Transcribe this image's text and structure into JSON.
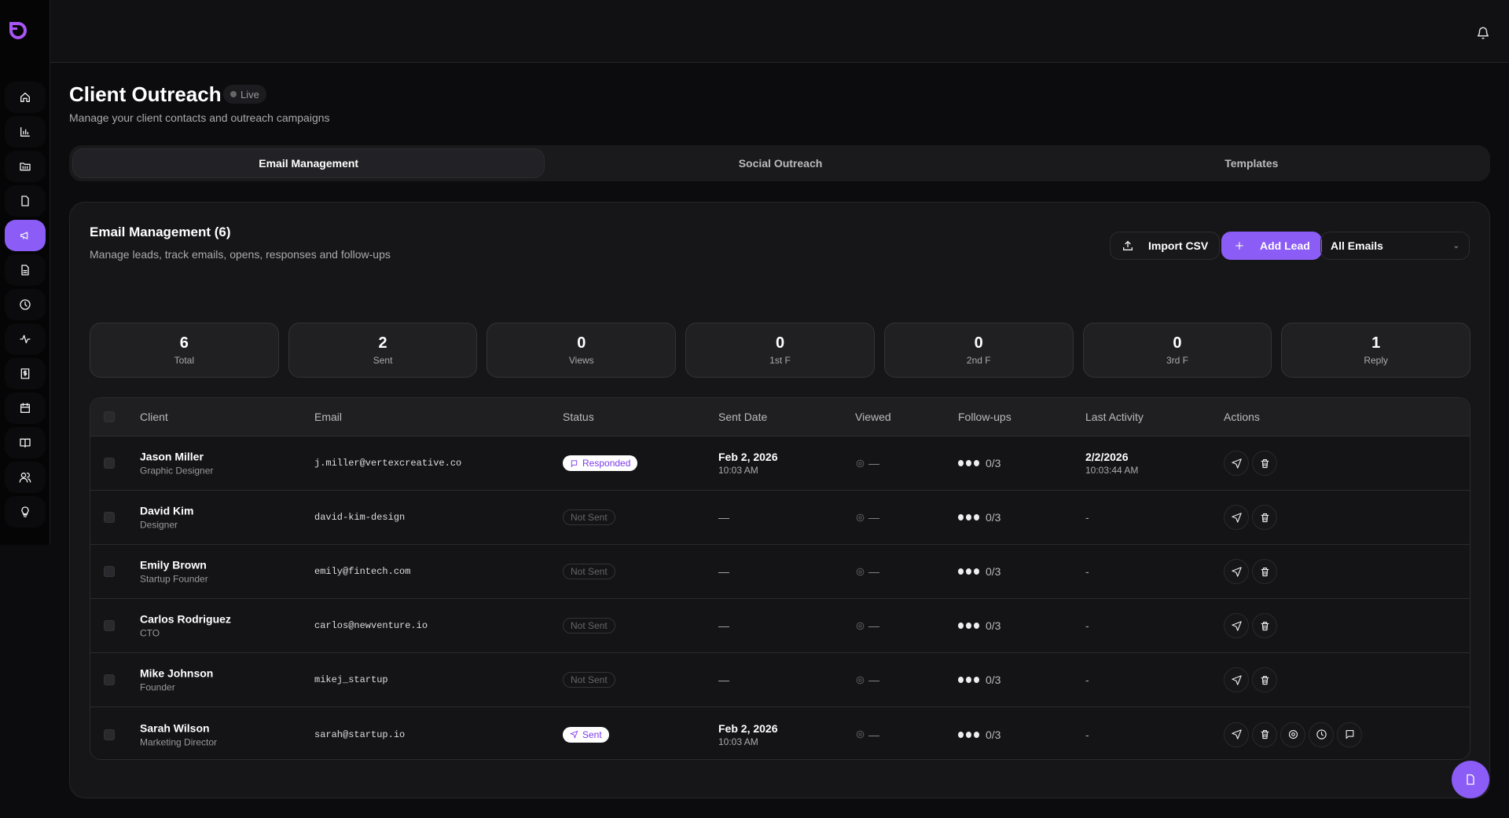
{
  "colors": {
    "accent": "#8b5cf6",
    "background": "#0c0c0e",
    "card": "#161618"
  },
  "sidebar": {
    "logo": "app-logo",
    "active_index": 4,
    "items": [
      "home-icon",
      "bar-chart-icon",
      "folder-icon",
      "file-icon",
      "megaphone-icon",
      "document-icon",
      "clock-icon",
      "activity-icon",
      "invoice-icon",
      "calendar-icon",
      "book-icon",
      "users-icon",
      "lightbulb-icon"
    ]
  },
  "header": {
    "title": "Client Outreach",
    "badge": "Live",
    "subtitle": "Manage your client contacts and outreach campaigns"
  },
  "tabs": [
    {
      "label": "Email Management",
      "active": true
    },
    {
      "label": "Social Outreach"
    },
    {
      "label": "Templates"
    }
  ],
  "card": {
    "title": "Email Management (6)",
    "subtitle": "Manage leads, track emails, opens, responses and follow-ups",
    "import_label": "Import CSV",
    "add_label": "Add Lead",
    "filter_value": "All Emails"
  },
  "stats": [
    {
      "value": "6",
      "label": "Total"
    },
    {
      "value": "2",
      "label": "Sent"
    },
    {
      "value": "0",
      "label": "Views"
    },
    {
      "value": "0",
      "label": "1st F"
    },
    {
      "value": "0",
      "label": "2nd F"
    },
    {
      "value": "0",
      "label": "3rd F"
    },
    {
      "value": "1",
      "label": "Reply"
    }
  ],
  "table": {
    "columns": [
      "Client",
      "Email",
      "Status",
      "Sent Date",
      "Viewed",
      "Follow-ups",
      "Last Activity",
      "Actions"
    ],
    "rows": [
      {
        "name": "Jason Miller",
        "role": "Graphic Designer",
        "email": "j.miller@vertexcreative.co",
        "status": "Responded",
        "sent_date": "Feb 2, 2026",
        "sent_time": "10:03 AM",
        "viewed": "—",
        "followups": "0/3",
        "last_date": "2/2/2026",
        "last_time": "10:03:44 AM"
      },
      {
        "name": "David Kim",
        "role": "Designer",
        "email": "david-kim-design",
        "status": "Not Sent",
        "sent_date": "—",
        "sent_time": "",
        "viewed": "—",
        "followups": "0/3",
        "last_date": "-",
        "last_time": ""
      },
      {
        "name": "Emily Brown",
        "role": "Startup Founder",
        "email": "emily@fintech.com",
        "status": "Not Sent",
        "sent_date": "—",
        "sent_time": "",
        "viewed": "—",
        "followups": "0/3",
        "last_date": "-",
        "last_time": ""
      },
      {
        "name": "Carlos Rodriguez",
        "role": "CTO",
        "email": "carlos@newventure.io",
        "status": "Not Sent",
        "sent_date": "—",
        "sent_time": "",
        "viewed": "—",
        "followups": "0/3",
        "last_date": "-",
        "last_time": ""
      },
      {
        "name": "Mike Johnson",
        "role": "Founder",
        "email": "mikej_startup",
        "status": "Not Sent",
        "sent_date": "—",
        "sent_time": "",
        "viewed": "—",
        "followups": "0/3",
        "last_date": "-",
        "last_time": ""
      },
      {
        "name": "Sarah Wilson",
        "role": "Marketing Director",
        "email": "sarah@startup.io",
        "status": "Sent",
        "sent_date": "Feb 2, 2026",
        "sent_time": "10:03 AM",
        "viewed": "—",
        "followups": "0/3",
        "last_date": "-",
        "last_time": "",
        "extra_actions": true
      }
    ]
  }
}
